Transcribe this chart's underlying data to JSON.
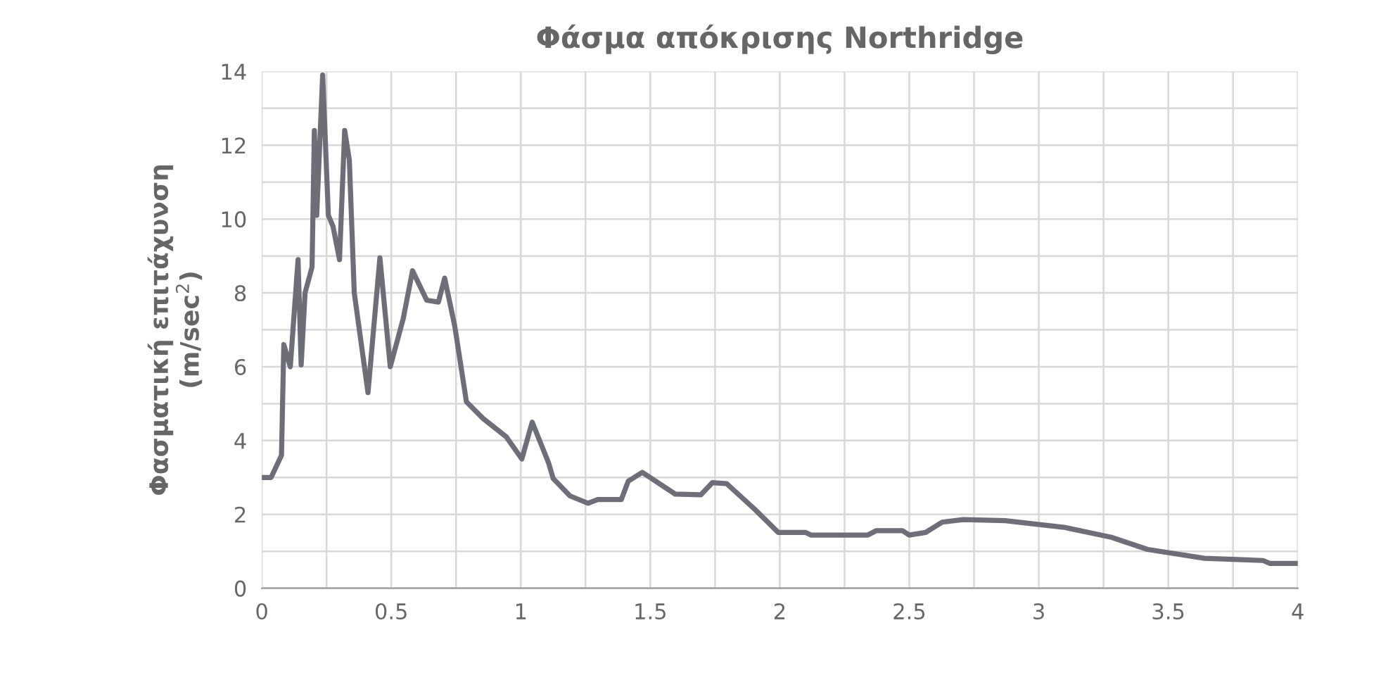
{
  "chart_data": {
    "type": "line",
    "title": "Φάσμα απόκρισης Northridge",
    "ylabel": "Φασματική επιτάχυνση\n(m/sec$^{2}$)",
    "xlim": [
      0,
      4
    ],
    "xticks": [
      0,
      0.5,
      1,
      1.5,
      2,
      2.5,
      3,
      3.5,
      4
    ],
    "ylim": [
      0,
      14
    ],
    "yticks": [
      0,
      2,
      4,
      6,
      8,
      10,
      12,
      14
    ],
    "grid": true,
    "marker": "none",
    "line_style": "solid",
    "series": [
      {
        "color": "#6e6e78",
        "x": [
          0.0,
          0.036,
          0.076,
          0.085,
          0.11,
          0.14,
          0.152,
          0.167,
          0.194,
          0.203,
          0.212,
          0.235,
          0.257,
          0.275,
          0.3,
          0.32,
          0.338,
          0.357,
          0.41,
          0.456,
          0.496,
          0.546,
          0.582,
          0.637,
          0.682,
          0.706,
          0.745,
          0.79,
          0.854,
          0.944,
          1.004,
          1.044,
          1.107,
          1.125,
          1.19,
          1.26,
          1.297,
          1.388,
          1.415,
          1.469,
          1.596,
          1.695,
          1.74,
          1.795,
          1.903,
          1.994,
          2.1,
          2.12,
          2.34,
          2.373,
          2.473,
          2.5,
          2.563,
          2.627,
          2.708,
          2.87,
          3.097,
          3.28,
          3.42,
          3.64,
          3.866,
          3.893,
          4.0
        ],
        "values": [
          3.0,
          3.0,
          3.6,
          6.6,
          6.0,
          8.9,
          6.05,
          8.0,
          8.7,
          12.4,
          10.1,
          13.9,
          10.1,
          9.8,
          8.9,
          12.4,
          11.6,
          8.0,
          5.3,
          8.95,
          6.0,
          7.3,
          8.6,
          7.8,
          7.75,
          8.4,
          7.1,
          5.05,
          4.6,
          4.1,
          3.5,
          4.5,
          3.4,
          2.97,
          2.5,
          2.3,
          2.4,
          2.4,
          2.9,
          3.14,
          2.55,
          2.53,
          2.86,
          2.83,
          2.14,
          1.51,
          1.51,
          1.44,
          1.44,
          1.56,
          1.56,
          1.44,
          1.51,
          1.79,
          1.86,
          1.83,
          1.65,
          1.38,
          1.05,
          0.81,
          0.75,
          0.67,
          0.67
        ]
      }
    ]
  }
}
